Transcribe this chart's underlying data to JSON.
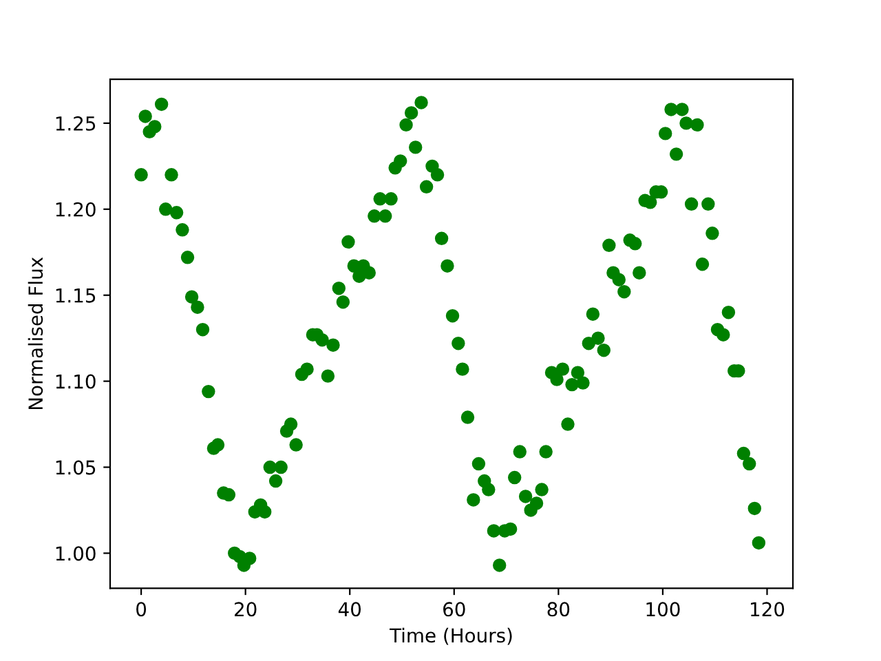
{
  "chart_data": {
    "type": "scatter",
    "xlabel": "Time (Hours)",
    "ylabel": "Normalised Flux",
    "x": [
      0,
      0.8,
      1.6,
      2.6,
      3.9,
      4.7,
      5.8,
      6.8,
      7.9,
      8.9,
      9.7,
      10.8,
      11.8,
      12.9,
      13.9,
      14.7,
      15.8,
      16.8,
      17.9,
      18.9,
      19.7,
      20.8,
      21.8,
      22.9,
      23.7,
      24.7,
      25.8,
      26.8,
      27.9,
      28.7,
      29.7,
      30.8,
      31.8,
      32.9,
      33.7,
      34.7,
      35.8,
      36.8,
      37.9,
      38.7,
      39.7,
      40.8,
      41.8,
      42.6,
      43.7,
      44.7,
      45.8,
      46.8,
      47.9,
      48.7,
      49.7,
      50.8,
      51.8,
      52.6,
      53.7,
      54.7,
      55.8,
      56.8,
      57.6,
      58.7,
      59.7,
      60.8,
      61.6,
      62.6,
      63.7,
      64.7,
      65.8,
      66.6,
      67.6,
      68.7,
      69.7,
      70.8,
      71.6,
      72.6,
      73.7,
      74.7,
      75.8,
      76.8,
      77.6,
      78.7,
      79.7,
      80.8,
      81.8,
      82.6,
      83.7,
      84.7,
      85.8,
      86.6,
      87.6,
      88.7,
      89.7,
      90.5,
      91.6,
      92.6,
      93.7,
      94.7,
      95.5,
      96.6,
      97.6,
      98.7,
      99.7,
      100.5,
      101.6,
      102.6,
      103.7,
      104.5,
      105.5,
      106.6,
      107.6,
      108.7,
      109.5,
      110.5,
      111.6,
      112.6,
      113.7,
      114.5,
      115.5,
      116.6,
      117.6,
      118.4
    ],
    "series": [
      {
        "color": "#008000",
        "values": [
          1.22,
          1.254,
          1.245,
          1.248,
          1.261,
          1.2,
          1.22,
          1.198,
          1.188,
          1.172,
          1.149,
          1.143,
          1.13,
          1.094,
          1.061,
          1.063,
          1.035,
          1.034,
          1.0,
          0.998,
          0.993,
          0.997,
          1.024,
          1.028,
          1.024,
          1.05,
          1.042,
          1.05,
          1.071,
          1.075,
          1.063,
          1.104,
          1.107,
          1.127,
          1.127,
          1.124,
          1.103,
          1.121,
          1.154,
          1.146,
          1.181,
          1.167,
          1.161,
          1.167,
          1.163,
          1.196,
          1.206,
          1.196,
          1.206,
          1.224,
          1.228,
          1.249,
          1.256,
          1.236,
          1.262,
          1.213,
          1.225,
          1.22,
          1.183,
          1.167,
          1.138,
          1.122,
          1.107,
          1.079,
          1.031,
          1.052,
          1.042,
          1.037,
          1.013,
          0.993,
          1.013,
          1.014,
          1.044,
          1.059,
          1.033,
          1.025,
          1.029,
          1.037,
          1.059,
          1.105,
          1.101,
          1.107,
          1.075,
          1.098,
          1.105,
          1.099,
          1.122,
          1.139,
          1.125,
          1.118,
          1.179,
          1.163,
          1.159,
          1.152,
          1.182,
          1.18,
          1.163,
          1.205,
          1.204,
          1.21,
          1.21,
          1.244,
          1.258,
          1.232,
          1.258,
          1.25,
          1.203,
          1.249,
          1.168,
          1.203,
          1.186,
          1.13,
          1.127,
          1.14,
          1.106,
          1.106,
          1.058,
          1.052,
          1.026,
          1.006
        ]
      }
    ],
    "marker": "circle",
    "xlim": [
      -5.95,
      124.95
    ],
    "ylim": [
      0.9796,
      1.2755
    ],
    "xticks": [
      0,
      20,
      40,
      60,
      80,
      100,
      120
    ],
    "yticks": [
      {
        "value": 1.0,
        "label": "1.00"
      },
      {
        "value": 1.05,
        "label": "1.05"
      },
      {
        "value": 1.1,
        "label": "1.10"
      },
      {
        "value": 1.15,
        "label": "1.15"
      },
      {
        "value": 1.2,
        "label": "1.20"
      },
      {
        "value": 1.25,
        "label": "1.25"
      }
    ],
    "grid": false
  }
}
